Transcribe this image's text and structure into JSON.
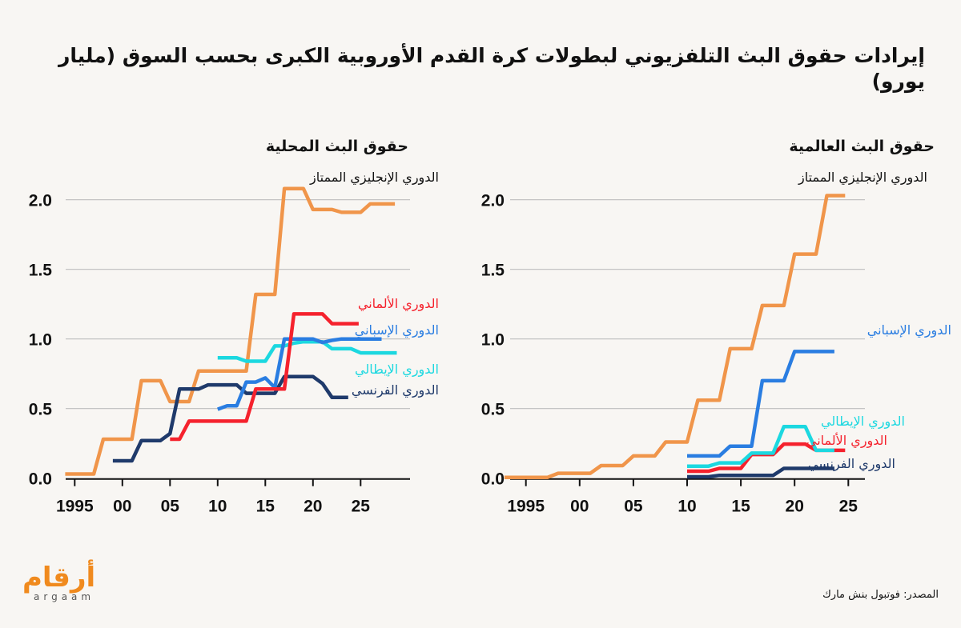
{
  "title": "إيرادات حقوق البث التلفزيوني لبطولات كرة القدم الأوروبية الكبرى بحسب السوق (مليار يورو)",
  "source": "المصدر: فوتبول بنش مارك",
  "logo": {
    "arabic": "أرقام",
    "latin": "argaam"
  },
  "colors": {
    "epl": "#F0954A",
    "bundesliga": "#F5222D",
    "laliga": "#2A7DE1",
    "seriea": "#1CD8E0",
    "ligue1": "#1F3A6B",
    "grid": "#BDBDBD",
    "axis": "#111111"
  },
  "chart_data": [
    {
      "type": "line",
      "title": "حقوق البث المحلية",
      "xlabel": "",
      "ylabel": "",
      "xlim": [
        1994,
        2030
      ],
      "ylim": [
        0,
        2.1
      ],
      "grid": true,
      "x_ticks": [
        1995,
        2000,
        2005,
        2010,
        2015,
        2020,
        2025
      ],
      "x_tick_labels": [
        "1995",
        "00",
        "05",
        "10",
        "15",
        "20",
        "25"
      ],
      "y_ticks": [
        0,
        0.5,
        1,
        1.5,
        2
      ],
      "y_tick_labels": [
        "0.0",
        "0.5",
        "1.0",
        "1.5",
        "2.0"
      ],
      "series": [
        {
          "key": "epl",
          "name": "الدوري الإنجليزي الممتاز",
          "x": [
            1994,
            1995,
            1996,
            1997,
            1998,
            1999,
            2000,
            2001,
            2002,
            2003,
            2004,
            2005,
            2006,
            2007,
            2008,
            2009,
            2010,
            2011,
            2012,
            2013,
            2014,
            2015,
            2016,
            2017,
            2018,
            2019,
            2020,
            2021,
            2022,
            2023,
            2024,
            2025,
            2026,
            2027,
            2028,
            2028.6
          ],
          "y": [
            0.03,
            0.03,
            0.03,
            0.03,
            0.28,
            0.28,
            0.28,
            0.28,
            0.7,
            0.7,
            0.7,
            0.55,
            0.55,
            0.55,
            0.77,
            0.77,
            0.77,
            0.77,
            0.77,
            0.77,
            1.32,
            1.32,
            1.32,
            2.08,
            2.08,
            2.08,
            1.93,
            1.93,
            1.93,
            1.91,
            1.91,
            1.91,
            1.97,
            1.97,
            1.97,
            1.97
          ]
        },
        {
          "key": "seriea",
          "name": "الدوري الإيطالي",
          "x": [
            2010,
            2011,
            2012,
            2013,
            2014,
            2015,
            2016,
            2017,
            2018,
            2019,
            2020,
            2021,
            2022,
            2023,
            2024,
            2025,
            2026,
            2027,
            2028,
            2028.8
          ],
          "y": [
            0.865,
            0.865,
            0.865,
            0.84,
            0.84,
            0.84,
            0.95,
            0.95,
            0.97,
            0.98,
            0.98,
            0.98,
            0.93,
            0.93,
            0.93,
            0.9,
            0.9,
            0.9,
            0.9,
            0.9
          ]
        },
        {
          "key": "ligue1",
          "name": "الدوري الفرنسي",
          "x": [
            1999,
            2000,
            2001,
            2002,
            2003,
            2004,
            2005,
            2006,
            2007,
            2008,
            2009,
            2010,
            2011,
            2012,
            2013,
            2014,
            2015,
            2016,
            2017,
            2018,
            2019,
            2020,
            2021,
            2022,
            2023,
            2023.7
          ],
          "y": [
            0.125,
            0.125,
            0.125,
            0.27,
            0.27,
            0.27,
            0.32,
            0.64,
            0.64,
            0.64,
            0.67,
            0.67,
            0.67,
            0.67,
            0.61,
            0.61,
            0.61,
            0.61,
            0.73,
            0.73,
            0.73,
            0.73,
            0.68,
            0.58,
            0.58,
            0.58
          ]
        },
        {
          "key": "laliga",
          "name": "الدوري الإسباني",
          "x": [
            2010,
            2011,
            2012,
            2013,
            2014,
            2015,
            2016,
            2017,
            2018,
            2019,
            2020,
            2021,
            2022,
            2023,
            2024,
            2025,
            2026,
            2027.2
          ],
          "y": [
            0.495,
            0.52,
            0.52,
            0.69,
            0.69,
            0.72,
            0.65,
            1.0,
            1.0,
            1.0,
            1.0,
            0.975,
            0.99,
            1.0,
            1.0,
            1.0,
            1.0,
            1.0
          ]
        },
        {
          "key": "bundesliga",
          "name": "الدوري الألماني",
          "x": [
            2005,
            2006,
            2007,
            2008,
            2009,
            2010,
            2011,
            2012,
            2013,
            2014,
            2015,
            2016,
            2017,
            2018,
            2019,
            2020,
            2021,
            2022,
            2023,
            2024,
            2024.8
          ],
          "y": [
            0.28,
            0.28,
            0.41,
            0.41,
            0.41,
            0.41,
            0.41,
            0.41,
            0.41,
            0.64,
            0.64,
            0.64,
            0.64,
            1.18,
            1.18,
            1.18,
            1.18,
            1.11,
            1.11,
            1.11,
            1.11
          ]
        }
      ]
    },
    {
      "type": "line",
      "title": "حقوق البث العالمية",
      "xlabel": "",
      "ylabel": "",
      "xlim": [
        1993.5,
        2026.5
      ],
      "ylim": [
        0,
        2.1
      ],
      "grid": true,
      "x_ticks": [
        1995,
        2000,
        2005,
        2010,
        2015,
        2020,
        2025
      ],
      "x_tick_labels": [
        "1995",
        "00",
        "05",
        "10",
        "15",
        "20",
        "25"
      ],
      "y_ticks": [
        0,
        0.5,
        1,
        1.5,
        2
      ],
      "y_tick_labels": [
        "0.0",
        "0.5",
        "1.0",
        "1.5",
        "2.0"
      ],
      "series": [
        {
          "key": "epl",
          "name": "الدوري الإنجليزي الممتاز",
          "x": [
            1993,
            1994,
            1995,
            1996,
            1997,
            1998,
            1999,
            2000,
            2001,
            2002,
            2003,
            2004,
            2005,
            2006,
            2007,
            2008,
            2009,
            2010,
            2011,
            2012,
            2013,
            2014,
            2015,
            2016,
            2017,
            2018,
            2019,
            2020,
            2021,
            2022,
            2023,
            2024,
            2024.7
          ],
          "y": [
            0.005,
            0.005,
            0.005,
            0.005,
            0.005,
            0.035,
            0.035,
            0.035,
            0.035,
            0.09,
            0.09,
            0.09,
            0.16,
            0.16,
            0.16,
            0.26,
            0.26,
            0.26,
            0.56,
            0.56,
            0.56,
            0.93,
            0.93,
            0.93,
            1.24,
            1.24,
            1.24,
            1.61,
            1.61,
            1.61,
            2.03,
            2.03,
            2.03
          ]
        },
        {
          "key": "laliga",
          "name": "الدوري الإسباني",
          "x": [
            2010,
            2011,
            2012,
            2013,
            2014,
            2015,
            2016,
            2017,
            2018,
            2019,
            2020,
            2021,
            2022,
            2023,
            2023.7
          ],
          "y": [
            0.16,
            0.16,
            0.16,
            0.16,
            0.23,
            0.23,
            0.23,
            0.7,
            0.7,
            0.7,
            0.91,
            0.91,
            0.91,
            0.91,
            0.91
          ]
        },
        {
          "key": "bundesliga",
          "name": "الدوري الألماني",
          "x": [
            2010,
            2011,
            2012,
            2013,
            2014,
            2015,
            2016,
            2017,
            2018,
            2019,
            2020,
            2021,
            2022,
            2023,
            2024,
            2024.7
          ],
          "y": [
            0.05,
            0.05,
            0.05,
            0.07,
            0.07,
            0.07,
            0.17,
            0.17,
            0.17,
            0.245,
            0.245,
            0.245,
            0.2,
            0.2,
            0.2,
            0.2
          ]
        },
        {
          "key": "seriea",
          "name": "الدوري الإيطالي",
          "x": [
            2010,
            2011,
            2012,
            2013,
            2014,
            2015,
            2016,
            2017,
            2018,
            2019,
            2020,
            2021,
            2022,
            2023,
            2023.7
          ],
          "y": [
            0.086,
            0.086,
            0.086,
            0.11,
            0.11,
            0.11,
            0.18,
            0.18,
            0.18,
            0.37,
            0.37,
            0.37,
            0.2,
            0.2,
            0.2
          ]
        },
        {
          "key": "ligue1",
          "name": "الدوري الفرنسي",
          "x": [
            2010,
            2011,
            2012,
            2013,
            2014,
            2015,
            2016,
            2017,
            2018,
            2019,
            2020,
            2021,
            2022,
            2023,
            2023.7
          ],
          "y": [
            0.01,
            0.01,
            0.01,
            0.02,
            0.02,
            0.02,
            0.02,
            0.02,
            0.02,
            0.07,
            0.07,
            0.07,
            0.07,
            0.07,
            0.07
          ]
        }
      ]
    }
  ]
}
